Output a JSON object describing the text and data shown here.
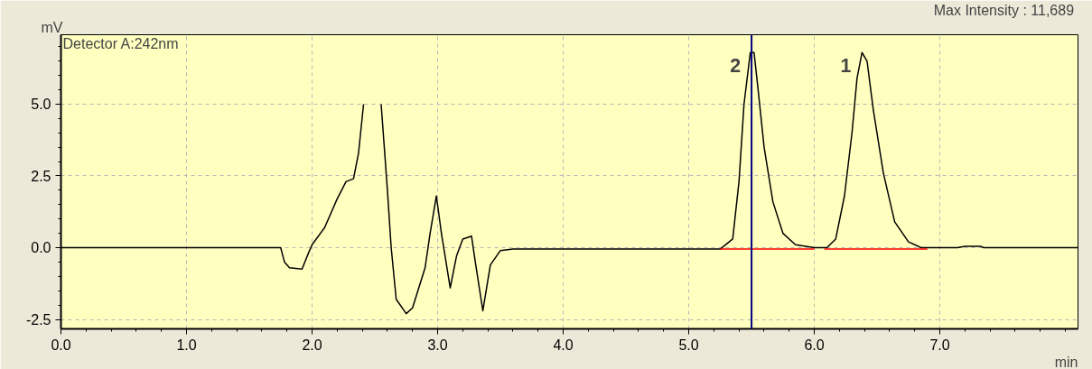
{
  "chart_data": {
    "type": "line",
    "xlabel": "min",
    "ylabel": "mV",
    "annotations": [
      "Detector A:242nm",
      "Max Intensity :  11,689",
      {
        "text": "2",
        "x": 5.5,
        "y": 6.8
      },
      {
        "text": "1",
        "x": 6.38,
        "y": 6.8
      }
    ],
    "xlim": [
      0,
      8.1
    ],
    "ylim": [
      -2.83,
      7.42
    ],
    "xticks": [
      {
        "value": 0,
        "label": "0.0"
      },
      {
        "value": 1,
        "label": "1.0"
      },
      {
        "value": 2,
        "label": "2.0"
      },
      {
        "value": 3,
        "label": "3.0"
      },
      {
        "value": 4,
        "label": "4.0"
      },
      {
        "value": 5,
        "label": "5.0"
      },
      {
        "value": 6,
        "label": "6.0"
      },
      {
        "value": 7,
        "label": "7.0"
      }
    ],
    "yticks": [
      -2.5,
      {
        "value": 0,
        "label": "0.0"
      },
      2.5,
      {
        "value": 5,
        "label": "5.0"
      }
    ],
    "grid": true,
    "line_style": "solid",
    "ref_lines": [
      {
        "axis": "x",
        "value": 5.5,
        "label": null,
        "color": "#000080"
      }
    ],
    "series": [
      {
        "color": "#000000",
        "x": [
          0,
          1.75,
          1.78,
          1.82,
          1.92,
          1.97,
          2.0,
          2.1,
          2.2,
          2.27,
          2.33,
          2.37,
          2.41,
          2.44,
          2.52,
          2.55,
          2.6,
          2.63,
          2.67,
          2.75,
          2.8,
          2.9,
          2.94,
          2.99,
          3.03,
          3.1,
          3.15,
          3.2,
          3.27,
          3.3,
          3.36,
          3.42,
          3.5,
          3.6,
          5.25,
          5.35,
          5.4,
          5.44,
          5.49,
          5.52,
          5.55,
          5.6,
          5.67,
          5.75,
          5.85,
          6.0,
          6.1,
          6.17,
          6.24,
          6.3,
          6.34,
          6.38,
          6.42,
          6.47,
          6.55,
          6.64,
          6.75,
          6.85,
          7.14,
          7.2,
          7.32,
          7.35,
          8.1
        ],
        "values": [
          0,
          0,
          -0.5,
          -0.7,
          -0.75,
          -0.2,
          0.1,
          0.7,
          1.7,
          2.3,
          2.4,
          3.3,
          5.0,
          null,
          null,
          5.0,
          2.0,
          0,
          -1.8,
          -2.3,
          -2.1,
          -0.7,
          0.5,
          1.8,
          0.5,
          -1.4,
          -0.3,
          0.3,
          0.4,
          -0.5,
          -2.2,
          -0.6,
          -0.1,
          -0.05,
          -0.05,
          0.3,
          2.3,
          5.0,
          6.8,
          6.8,
          5.6,
          3.5,
          1.6,
          0.5,
          0.1,
          0.0,
          0.0,
          0.3,
          1.8,
          4.0,
          5.9,
          6.8,
          6.5,
          4.8,
          2.6,
          0.9,
          0.2,
          0.0,
          0.0,
          0.05,
          0.05,
          0.0,
          0.0
        ]
      },
      {
        "color": "#ff0000",
        "x": [
          5.25,
          6.0
        ],
        "values": [
          -0.05,
          -0.05
        ]
      },
      {
        "color": "#ff0000",
        "x": [
          6.08,
          6.9
        ],
        "values": [
          -0.05,
          -0.05
        ]
      }
    ]
  }
}
